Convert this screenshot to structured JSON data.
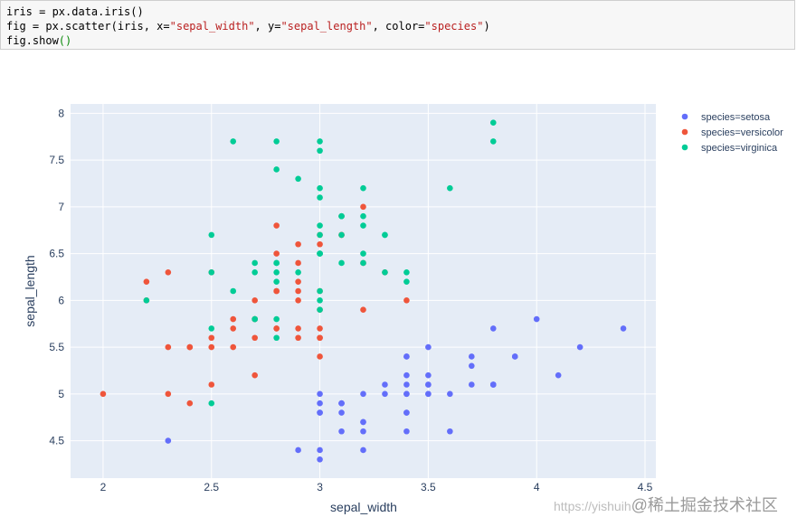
{
  "code": {
    "lines": [
      [
        {
          "t": "iris = px.data.iris()",
          "c": "plain"
        }
      ],
      [
        {
          "t": "fig = px.scatter(iris, x=",
          "c": "plain"
        },
        {
          "t": "\"sepal_width\"",
          "c": "str"
        },
        {
          "t": ", y=",
          "c": "plain"
        },
        {
          "t": "\"sepal_length\"",
          "c": "str"
        },
        {
          "t": ", color=",
          "c": "plain"
        },
        {
          "t": "\"species\"",
          "c": "str"
        },
        {
          "t": ")",
          "c": "plain"
        }
      ],
      [
        {
          "t": "fig.show",
          "c": "plain"
        },
        {
          "t": "()",
          "c": "paren"
        }
      ]
    ],
    "colors": {
      "plain": "#000000",
      "str": "#ba2121",
      "paren": "#0a8a0a"
    }
  },
  "watermark": {
    "url": "https://yishuih",
    "cn": "@稀土掘金技术社区"
  },
  "chart_data": {
    "type": "scatter",
    "xlabel": "sepal_width",
    "ylabel": "sepal_length",
    "xlim": [
      1.85,
      4.55
    ],
    "ylim": [
      4.1,
      8.1
    ],
    "xticks": [
      2,
      2.5,
      3,
      3.5,
      4,
      4.5
    ],
    "xtick_labels": [
      "2",
      "2.5",
      "3",
      "3.5",
      "4",
      "4.5"
    ],
    "yticks": [
      4.5,
      5,
      5.5,
      6,
      6.5,
      7,
      7.5,
      8
    ],
    "ytick_labels": [
      "4.5",
      "5",
      "5.5",
      "6",
      "6.5",
      "7",
      "7.5",
      "8"
    ],
    "grid": true,
    "legend_position": "right",
    "series": [
      {
        "name": "species=setosa",
        "color": "#636efa",
        "points": [
          [
            3.5,
            5.1
          ],
          [
            3.0,
            4.9
          ],
          [
            3.2,
            4.7
          ],
          [
            3.1,
            4.6
          ],
          [
            3.6,
            5.0
          ],
          [
            3.9,
            5.4
          ],
          [
            3.4,
            4.6
          ],
          [
            3.4,
            5.0
          ],
          [
            2.9,
            4.4
          ],
          [
            3.1,
            4.9
          ],
          [
            3.7,
            5.4
          ],
          [
            3.4,
            4.8
          ],
          [
            3.0,
            4.8
          ],
          [
            3.0,
            4.3
          ],
          [
            4.0,
            5.8
          ],
          [
            4.4,
            5.7
          ],
          [
            3.9,
            5.4
          ],
          [
            3.5,
            5.1
          ],
          [
            3.8,
            5.7
          ],
          [
            3.8,
            5.1
          ],
          [
            3.4,
            5.4
          ],
          [
            3.7,
            5.1
          ],
          [
            3.6,
            4.6
          ],
          [
            3.3,
            5.1
          ],
          [
            3.4,
            4.8
          ],
          [
            3.0,
            5.0
          ],
          [
            3.4,
            5.0
          ],
          [
            3.5,
            5.2
          ],
          [
            3.4,
            5.2
          ],
          [
            3.2,
            4.7
          ],
          [
            3.1,
            4.8
          ],
          [
            3.4,
            5.4
          ],
          [
            4.1,
            5.2
          ],
          [
            4.2,
            5.5
          ],
          [
            3.1,
            4.9
          ],
          [
            3.2,
            5.0
          ],
          [
            3.5,
            5.5
          ],
          [
            3.1,
            4.9
          ],
          [
            3.0,
            4.4
          ],
          [
            3.4,
            5.1
          ],
          [
            3.5,
            5.0
          ],
          [
            2.3,
            4.5
          ],
          [
            3.2,
            4.4
          ],
          [
            3.5,
            5.0
          ],
          [
            3.8,
            5.1
          ],
          [
            3.0,
            4.8
          ],
          [
            3.8,
            5.1
          ],
          [
            3.2,
            4.6
          ],
          [
            3.7,
            5.3
          ],
          [
            3.3,
            5.0
          ]
        ]
      },
      {
        "name": "species=versicolor",
        "color": "#ef553b",
        "points": [
          [
            3.2,
            7.0
          ],
          [
            3.2,
            6.4
          ],
          [
            3.1,
            6.9
          ],
          [
            2.3,
            5.5
          ],
          [
            2.8,
            6.5
          ],
          [
            2.8,
            5.7
          ],
          [
            3.3,
            6.3
          ],
          [
            2.4,
            4.9
          ],
          [
            2.9,
            6.6
          ],
          [
            2.7,
            5.2
          ],
          [
            2.0,
            5.0
          ],
          [
            3.0,
            5.9
          ],
          [
            2.2,
            6.0
          ],
          [
            2.9,
            6.1
          ],
          [
            2.9,
            5.6
          ],
          [
            3.1,
            6.7
          ],
          [
            3.0,
            5.6
          ],
          [
            2.7,
            5.8
          ],
          [
            2.2,
            6.2
          ],
          [
            2.5,
            5.6
          ],
          [
            3.2,
            5.9
          ],
          [
            2.8,
            6.1
          ],
          [
            2.5,
            6.3
          ],
          [
            2.8,
            6.1
          ],
          [
            2.9,
            6.4
          ],
          [
            3.0,
            6.6
          ],
          [
            2.8,
            6.8
          ],
          [
            3.0,
            6.7
          ],
          [
            2.9,
            6.0
          ],
          [
            2.6,
            5.7
          ],
          [
            2.4,
            5.5
          ],
          [
            2.4,
            5.5
          ],
          [
            2.7,
            5.8
          ],
          [
            2.7,
            6.0
          ],
          [
            3.0,
            5.4
          ],
          [
            3.4,
            6.0
          ],
          [
            3.1,
            6.7
          ],
          [
            2.3,
            6.3
          ],
          [
            3.0,
            5.6
          ],
          [
            2.5,
            5.5
          ],
          [
            2.6,
            5.5
          ],
          [
            3.0,
            6.1
          ],
          [
            2.6,
            5.8
          ],
          [
            2.3,
            5.0
          ],
          [
            2.7,
            5.6
          ],
          [
            3.0,
            5.7
          ],
          [
            2.9,
            5.7
          ],
          [
            2.9,
            6.2
          ],
          [
            2.5,
            5.1
          ],
          [
            2.8,
            5.7
          ]
        ]
      },
      {
        "name": "species=virginica",
        "color": "#00cc96",
        "points": [
          [
            3.3,
            6.3
          ],
          [
            2.7,
            5.8
          ],
          [
            3.0,
            7.1
          ],
          [
            2.9,
            6.3
          ],
          [
            3.0,
            6.5
          ],
          [
            3.0,
            7.6
          ],
          [
            2.5,
            4.9
          ],
          [
            2.9,
            7.3
          ],
          [
            2.5,
            6.7
          ],
          [
            3.6,
            7.2
          ],
          [
            3.2,
            6.5
          ],
          [
            2.7,
            6.4
          ],
          [
            3.0,
            6.8
          ],
          [
            2.5,
            5.7
          ],
          [
            2.8,
            5.8
          ],
          [
            3.2,
            6.4
          ],
          [
            3.0,
            6.5
          ],
          [
            3.8,
            7.7
          ],
          [
            2.6,
            7.7
          ],
          [
            2.2,
            6.0
          ],
          [
            3.2,
            6.9
          ],
          [
            2.8,
            5.6
          ],
          [
            2.8,
            7.7
          ],
          [
            2.7,
            6.3
          ],
          [
            3.3,
            6.7
          ],
          [
            3.2,
            7.2
          ],
          [
            2.8,
            6.2
          ],
          [
            3.0,
            6.1
          ],
          [
            2.8,
            6.4
          ],
          [
            3.0,
            7.2
          ],
          [
            2.8,
            7.4
          ],
          [
            3.8,
            7.9
          ],
          [
            2.8,
            6.4
          ],
          [
            2.8,
            6.3
          ],
          [
            2.6,
            6.1
          ],
          [
            3.0,
            7.7
          ],
          [
            3.4,
            6.3
          ],
          [
            3.1,
            6.4
          ],
          [
            3.0,
            6.0
          ],
          [
            3.1,
            6.9
          ],
          [
            3.1,
            6.7
          ],
          [
            3.1,
            6.9
          ],
          [
            2.7,
            5.8
          ],
          [
            3.2,
            6.8
          ],
          [
            3.3,
            6.7
          ],
          [
            3.0,
            6.7
          ],
          [
            2.5,
            6.3
          ],
          [
            3.0,
            6.5
          ],
          [
            3.4,
            6.2
          ],
          [
            3.0,
            5.9
          ]
        ]
      }
    ]
  }
}
